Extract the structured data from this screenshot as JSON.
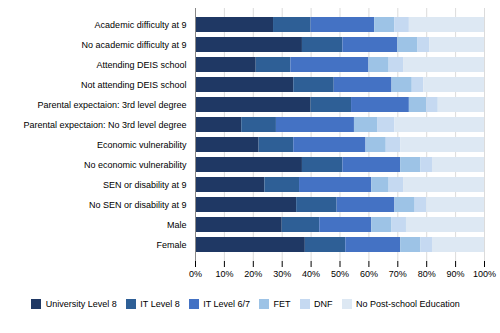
{
  "chart_data": {
    "type": "bar",
    "orientation": "horizontal",
    "stacked": true,
    "categories": [
      "Academic difficulty at 9",
      "No academic difficulty at 9",
      "Attending DEIS school",
      "Not attending DEIS school",
      "Parental expectaion: 3rd level degree",
      "Parental expectaion: No 3rd level degree",
      "Economic vulnerability",
      "No economic vulnerability",
      "SEN or disability at 9",
      "No SEN or disability at 9",
      "Male",
      "Female"
    ],
    "series": [
      {
        "name": "University Level 8",
        "color": "#1f3864",
        "values": [
          0.27,
          0.37,
          0.21,
          0.34,
          0.4,
          0.16,
          0.22,
          0.37,
          0.24,
          0.35,
          0.3,
          0.38
        ]
      },
      {
        "name": "IT Level 8",
        "color": "#2e5f96",
        "values": [
          0.13,
          0.14,
          0.12,
          0.14,
          0.14,
          0.12,
          0.12,
          0.14,
          0.12,
          0.14,
          0.13,
          0.14
        ]
      },
      {
        "name": "IT Level 6/7",
        "color": "#4472c4",
        "values": [
          0.22,
          0.19,
          0.27,
          0.2,
          0.2,
          0.27,
          0.25,
          0.2,
          0.25,
          0.2,
          0.18,
          0.19
        ]
      },
      {
        "name": "FET",
        "color": "#9dc3e6",
        "values": [
          0.07,
          0.07,
          0.07,
          0.07,
          0.06,
          0.08,
          0.07,
          0.07,
          0.06,
          0.07,
          0.07,
          0.07
        ]
      },
      {
        "name": "DNF",
        "color": "#c5d9f1",
        "values": [
          0.05,
          0.04,
          0.05,
          0.04,
          0.04,
          0.06,
          0.05,
          0.04,
          0.05,
          0.04,
          0.05,
          0.04
        ]
      },
      {
        "name": "No Post-school Education",
        "color": "#dde8f3",
        "values": [
          0.26,
          0.19,
          0.28,
          0.21,
          0.16,
          0.31,
          0.29,
          0.18,
          0.28,
          0.2,
          0.27,
          0.18
        ]
      }
    ],
    "xlim": [
      0,
      1.0
    ],
    "xticks": [
      {
        "value": 0,
        "label": "0%"
      },
      {
        "value": 0.1,
        "label": "10%"
      },
      {
        "value": 0.2,
        "label": "20%"
      },
      {
        "value": 0.3,
        "label": "30%"
      },
      {
        "value": 0.4,
        "label": "40%"
      },
      {
        "value": 0.5,
        "label": "50%"
      },
      {
        "value": 0.6,
        "label": "60%"
      },
      {
        "value": 0.7,
        "label": "70%"
      },
      {
        "value": 0.8,
        "label": "80%"
      },
      {
        "value": 0.9,
        "label": "90%"
      },
      {
        "value": 1.0,
        "label": "100%"
      }
    ],
    "grid": true,
    "legend": "bottom"
  }
}
